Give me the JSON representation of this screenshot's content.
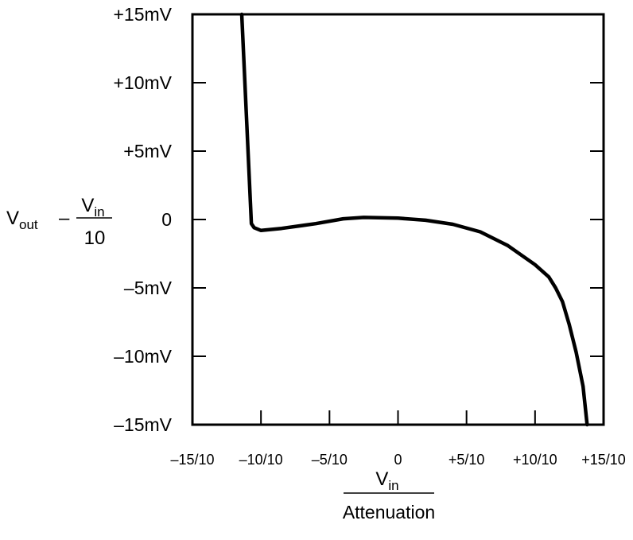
{
  "chart_data": {
    "type": "line",
    "title": "",
    "x_range": [
      -1.5,
      1.5
    ],
    "y_range": [
      -15,
      15
    ],
    "x_ticks": [
      {
        "value": -1.5,
        "label": "–15/10"
      },
      {
        "value": -1.0,
        "label": "–10/10"
      },
      {
        "value": -0.5,
        "label": "–5/10"
      },
      {
        "value": 0,
        "label": "0"
      },
      {
        "value": 0.5,
        "label": "+5/10"
      },
      {
        "value": 1.0,
        "label": "+10/10"
      },
      {
        "value": 1.5,
        "label": "+15/10"
      }
    ],
    "y_ticks": [
      {
        "value": 15,
        "label": "+15mV"
      },
      {
        "value": 10,
        "label": "+10mV"
      },
      {
        "value": 5,
        "label": "+5mV"
      },
      {
        "value": 0,
        "label": "0"
      },
      {
        "value": -5,
        "label": "–5mV"
      },
      {
        "value": -10,
        "label": "–10mV"
      },
      {
        "value": -15,
        "label": "–15mV"
      }
    ],
    "x_label": {
      "numerator": "V",
      "numerator_sub": "in",
      "denominator": "Attenuation"
    },
    "y_label": {
      "prefix": "V",
      "prefix_sub": "out",
      "minus": "–",
      "numerator": "V",
      "numerator_sub": "in",
      "denominator": "10"
    },
    "grid": false,
    "series": [
      {
        "points": [
          [
            -1.14,
            15.0
          ],
          [
            -1.07,
            -0.3
          ],
          [
            -1.05,
            -0.6
          ],
          [
            -1.0,
            -0.8
          ],
          [
            -0.85,
            -0.65
          ],
          [
            -0.6,
            -0.3
          ],
          [
            -0.4,
            0.05
          ],
          [
            -0.25,
            0.15
          ],
          [
            0.0,
            0.1
          ],
          [
            0.2,
            -0.05
          ],
          [
            0.4,
            -0.35
          ],
          [
            0.6,
            -0.9
          ],
          [
            0.8,
            -1.9
          ],
          [
            1.0,
            -3.3
          ],
          [
            1.1,
            -4.2
          ],
          [
            1.15,
            -5.0
          ],
          [
            1.2,
            -6.0
          ],
          [
            1.25,
            -7.7
          ],
          [
            1.3,
            -9.7
          ],
          [
            1.35,
            -12.2
          ],
          [
            1.38,
            -15.0
          ]
        ]
      }
    ]
  }
}
